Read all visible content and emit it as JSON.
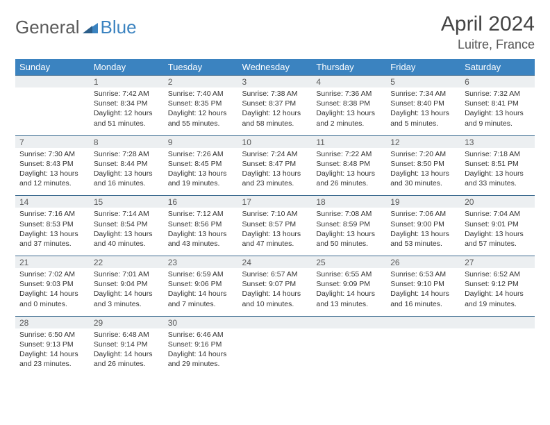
{
  "brand": {
    "part1": "General",
    "part2": "Blue"
  },
  "title": {
    "month": "April 2024",
    "location": "Luitre, France"
  },
  "colors": {
    "header_bg": "#3b83c0",
    "header_text": "#ffffff",
    "daterow_bg": "#eceff1",
    "daterow_border": "#3b6a8f",
    "body_text": "#333333",
    "logo_gray": "#5a5a5a",
    "logo_blue": "#3b83c0"
  },
  "daynames": [
    "Sunday",
    "Monday",
    "Tuesday",
    "Wednesday",
    "Thursday",
    "Friday",
    "Saturday"
  ],
  "weeks": [
    {
      "dates": [
        "",
        "1",
        "2",
        "3",
        "4",
        "5",
        "6"
      ],
      "cells": [
        null,
        {
          "sr": "Sunrise: 7:42 AM",
          "ss": "Sunset: 8:34 PM",
          "dl": "Daylight: 12 hours and 51 minutes."
        },
        {
          "sr": "Sunrise: 7:40 AM",
          "ss": "Sunset: 8:35 PM",
          "dl": "Daylight: 12 hours and 55 minutes."
        },
        {
          "sr": "Sunrise: 7:38 AM",
          "ss": "Sunset: 8:37 PM",
          "dl": "Daylight: 12 hours and 58 minutes."
        },
        {
          "sr": "Sunrise: 7:36 AM",
          "ss": "Sunset: 8:38 PM",
          "dl": "Daylight: 13 hours and 2 minutes."
        },
        {
          "sr": "Sunrise: 7:34 AM",
          "ss": "Sunset: 8:40 PM",
          "dl": "Daylight: 13 hours and 5 minutes."
        },
        {
          "sr": "Sunrise: 7:32 AM",
          "ss": "Sunset: 8:41 PM",
          "dl": "Daylight: 13 hours and 9 minutes."
        }
      ]
    },
    {
      "dates": [
        "7",
        "8",
        "9",
        "10",
        "11",
        "12",
        "13"
      ],
      "cells": [
        {
          "sr": "Sunrise: 7:30 AM",
          "ss": "Sunset: 8:43 PM",
          "dl": "Daylight: 13 hours and 12 minutes."
        },
        {
          "sr": "Sunrise: 7:28 AM",
          "ss": "Sunset: 8:44 PM",
          "dl": "Daylight: 13 hours and 16 minutes."
        },
        {
          "sr": "Sunrise: 7:26 AM",
          "ss": "Sunset: 8:45 PM",
          "dl": "Daylight: 13 hours and 19 minutes."
        },
        {
          "sr": "Sunrise: 7:24 AM",
          "ss": "Sunset: 8:47 PM",
          "dl": "Daylight: 13 hours and 23 minutes."
        },
        {
          "sr": "Sunrise: 7:22 AM",
          "ss": "Sunset: 8:48 PM",
          "dl": "Daylight: 13 hours and 26 minutes."
        },
        {
          "sr": "Sunrise: 7:20 AM",
          "ss": "Sunset: 8:50 PM",
          "dl": "Daylight: 13 hours and 30 minutes."
        },
        {
          "sr": "Sunrise: 7:18 AM",
          "ss": "Sunset: 8:51 PM",
          "dl": "Daylight: 13 hours and 33 minutes."
        }
      ]
    },
    {
      "dates": [
        "14",
        "15",
        "16",
        "17",
        "18",
        "19",
        "20"
      ],
      "cells": [
        {
          "sr": "Sunrise: 7:16 AM",
          "ss": "Sunset: 8:53 PM",
          "dl": "Daylight: 13 hours and 37 minutes."
        },
        {
          "sr": "Sunrise: 7:14 AM",
          "ss": "Sunset: 8:54 PM",
          "dl": "Daylight: 13 hours and 40 minutes."
        },
        {
          "sr": "Sunrise: 7:12 AM",
          "ss": "Sunset: 8:56 PM",
          "dl": "Daylight: 13 hours and 43 minutes."
        },
        {
          "sr": "Sunrise: 7:10 AM",
          "ss": "Sunset: 8:57 PM",
          "dl": "Daylight: 13 hours and 47 minutes."
        },
        {
          "sr": "Sunrise: 7:08 AM",
          "ss": "Sunset: 8:59 PM",
          "dl": "Daylight: 13 hours and 50 minutes."
        },
        {
          "sr": "Sunrise: 7:06 AM",
          "ss": "Sunset: 9:00 PM",
          "dl": "Daylight: 13 hours and 53 minutes."
        },
        {
          "sr": "Sunrise: 7:04 AM",
          "ss": "Sunset: 9:01 PM",
          "dl": "Daylight: 13 hours and 57 minutes."
        }
      ]
    },
    {
      "dates": [
        "21",
        "22",
        "23",
        "24",
        "25",
        "26",
        "27"
      ],
      "cells": [
        {
          "sr": "Sunrise: 7:02 AM",
          "ss": "Sunset: 9:03 PM",
          "dl": "Daylight: 14 hours and 0 minutes."
        },
        {
          "sr": "Sunrise: 7:01 AM",
          "ss": "Sunset: 9:04 PM",
          "dl": "Daylight: 14 hours and 3 minutes."
        },
        {
          "sr": "Sunrise: 6:59 AM",
          "ss": "Sunset: 9:06 PM",
          "dl": "Daylight: 14 hours and 7 minutes."
        },
        {
          "sr": "Sunrise: 6:57 AM",
          "ss": "Sunset: 9:07 PM",
          "dl": "Daylight: 14 hours and 10 minutes."
        },
        {
          "sr": "Sunrise: 6:55 AM",
          "ss": "Sunset: 9:09 PM",
          "dl": "Daylight: 14 hours and 13 minutes."
        },
        {
          "sr": "Sunrise: 6:53 AM",
          "ss": "Sunset: 9:10 PM",
          "dl": "Daylight: 14 hours and 16 minutes."
        },
        {
          "sr": "Sunrise: 6:52 AM",
          "ss": "Sunset: 9:12 PM",
          "dl": "Daylight: 14 hours and 19 minutes."
        }
      ]
    },
    {
      "dates": [
        "28",
        "29",
        "30",
        "",
        "",
        "",
        ""
      ],
      "cells": [
        {
          "sr": "Sunrise: 6:50 AM",
          "ss": "Sunset: 9:13 PM",
          "dl": "Daylight: 14 hours and 23 minutes."
        },
        {
          "sr": "Sunrise: 6:48 AM",
          "ss": "Sunset: 9:14 PM",
          "dl": "Daylight: 14 hours and 26 minutes."
        },
        {
          "sr": "Sunrise: 6:46 AM",
          "ss": "Sunset: 9:16 PM",
          "dl": "Daylight: 14 hours and 29 minutes."
        },
        null,
        null,
        null,
        null
      ]
    }
  ]
}
